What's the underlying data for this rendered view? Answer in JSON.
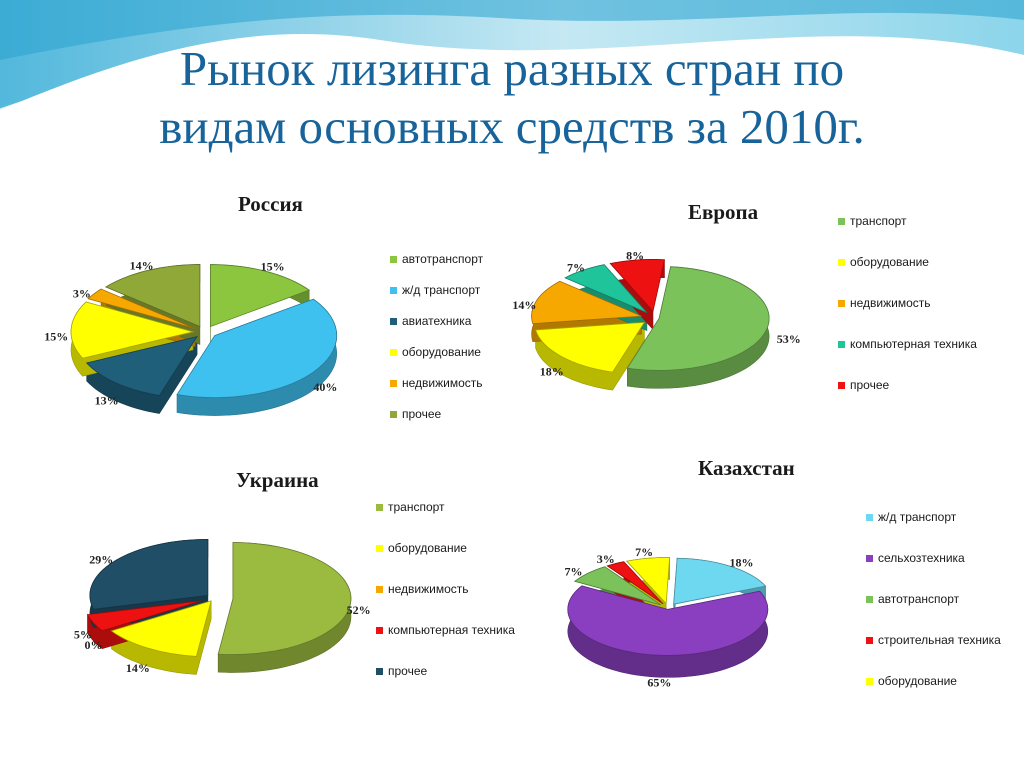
{
  "slide": {
    "title_line1": "Рынок лизинга разных стран по",
    "title_line2": "видам основных средств за 2010г."
  },
  "chart_data": [
    {
      "type": "pie",
      "title": "Россия",
      "categories": [
        "автотранспорт",
        "ж/д транспорт",
        "авиатехника",
        "оборудование",
        "недвижимость",
        "прочее"
      ],
      "values": [
        15,
        40,
        13,
        15,
        3,
        14
      ],
      "labels": [
        "15%",
        "40%",
        "13%",
        "15%",
        "3%",
        "14%"
      ],
      "colors": [
        "#8cc63f",
        "#3fc1f0",
        "#1f5f7a",
        "#ffff00",
        "#f7a800",
        "#8fa838"
      ],
      "legend": "right"
    },
    {
      "type": "pie",
      "title": "Европа",
      "categories": [
        "транспорт",
        "оборудование",
        "недвижимость",
        "компьютерная техника",
        "прочее"
      ],
      "values": [
        53,
        18,
        14,
        7,
        8
      ],
      "labels": [
        "53%",
        "18%",
        "14%",
        "7%",
        "8%"
      ],
      "colors": [
        "#7cc25a",
        "#ffff00",
        "#f7a800",
        "#1fc49a",
        "#ee1111"
      ],
      "legend": "right"
    },
    {
      "type": "pie",
      "title": "Украина",
      "categories": [
        "транспорт",
        "оборудование",
        "недвижимость",
        "компьютерная техника",
        "прочее"
      ],
      "values": [
        52,
        14,
        0,
        5,
        29
      ],
      "labels": [
        "52%",
        "14%",
        "0%",
        "5%",
        "29%"
      ],
      "colors": [
        "#9bbb40",
        "#ffff00",
        "#f7a800",
        "#ee1111",
        "#1f4e66"
      ],
      "legend": "right"
    },
    {
      "type": "pie",
      "title": "Казахстан",
      "categories": [
        "ж/д транспорт",
        "сельхозтехника",
        "автотранспорт",
        "строительная техника",
        "оборудование"
      ],
      "values": [
        18,
        65,
        7,
        3,
        7
      ],
      "labels": [
        "18%",
        "65%",
        "7%",
        "3%",
        "7%"
      ],
      "colors": [
        "#6dd8f0",
        "#8a3fc0",
        "#7cc25a",
        "#ee1111",
        "#ffff00"
      ],
      "legend": "right"
    }
  ]
}
